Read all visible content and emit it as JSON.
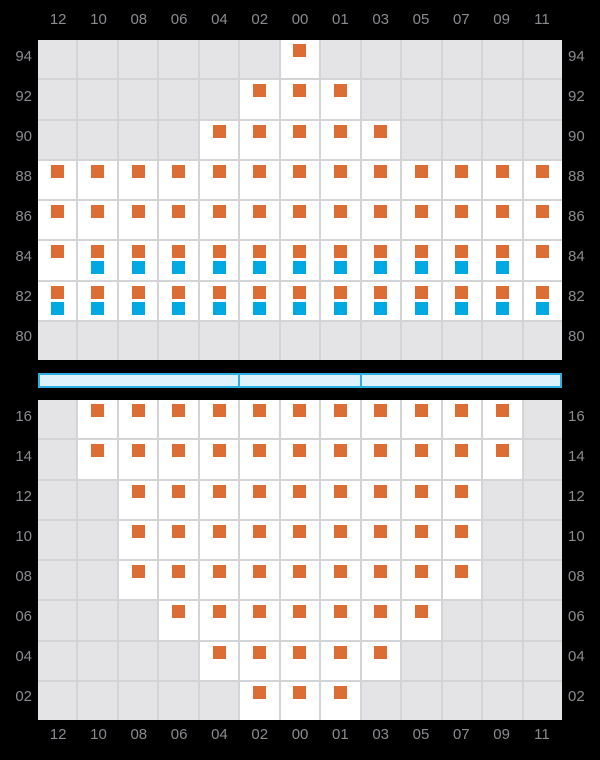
{
  "columns": [
    "12",
    "10",
    "08",
    "06",
    "04",
    "02",
    "00",
    "01",
    "03",
    "05",
    "07",
    "09",
    "11"
  ],
  "colors": {
    "background": "#000000",
    "label_text": "#8a8b90",
    "grid_line": "#d3d4d6",
    "cell_empty": "#e4e4e6",
    "cell_filled": "#ffffff",
    "orange_mark": "#dc6e35",
    "blue_mark": "#00a9e1",
    "bar_fill": "#def2fc",
    "bar_border": "#2faee3"
  },
  "chart_data": [
    {
      "type": "heatmap",
      "name": "upper-grid",
      "columns": [
        "12",
        "10",
        "08",
        "06",
        "04",
        "02",
        "00",
        "01",
        "03",
        "05",
        "07",
        "09",
        "11"
      ],
      "row_axis_side": "both",
      "grid": true,
      "rows": [
        {
          "label": "94",
          "orange": [
            "00"
          ],
          "blue": []
        },
        {
          "label": "92",
          "orange": [
            "02",
            "00",
            "01"
          ],
          "blue": []
        },
        {
          "label": "90",
          "orange": [
            "04",
            "02",
            "00",
            "01",
            "03"
          ],
          "blue": []
        },
        {
          "label": "88",
          "orange": [
            "12",
            "10",
            "08",
            "06",
            "04",
            "02",
            "00",
            "01",
            "03",
            "05",
            "07",
            "09",
            "11"
          ],
          "blue": []
        },
        {
          "label": "86",
          "orange": [
            "12",
            "10",
            "08",
            "06",
            "04",
            "02",
            "00",
            "01",
            "03",
            "05",
            "07",
            "09",
            "11"
          ],
          "blue": []
        },
        {
          "label": "84",
          "orange": [
            "12",
            "10",
            "08",
            "06",
            "04",
            "02",
            "00",
            "01",
            "03",
            "05",
            "07",
            "09",
            "11"
          ],
          "blue": [
            "10",
            "08",
            "06",
            "04",
            "02",
            "00",
            "01",
            "03",
            "05",
            "07",
            "09"
          ]
        },
        {
          "label": "82",
          "orange": [
            "12",
            "10",
            "08",
            "06",
            "04",
            "02",
            "00",
            "01",
            "03",
            "05",
            "07",
            "09",
            "11"
          ],
          "blue": [
            "12",
            "10",
            "08",
            "06",
            "04",
            "02",
            "00",
            "01",
            "03",
            "05",
            "07",
            "09",
            "11"
          ]
        },
        {
          "label": "80",
          "orange": [],
          "blue": []
        }
      ]
    },
    {
      "type": "heatmap",
      "name": "lower-grid",
      "columns": [
        "12",
        "10",
        "08",
        "06",
        "04",
        "02",
        "00",
        "01",
        "03",
        "05",
        "07",
        "09",
        "11"
      ],
      "row_axis_side": "both",
      "grid": true,
      "rows": [
        {
          "label": "16",
          "orange": [
            "10",
            "08",
            "06",
            "04",
            "02",
            "00",
            "01",
            "03",
            "05",
            "07",
            "09"
          ],
          "blue": []
        },
        {
          "label": "14",
          "orange": [
            "10",
            "08",
            "06",
            "04",
            "02",
            "00",
            "01",
            "03",
            "05",
            "07",
            "09"
          ],
          "blue": []
        },
        {
          "label": "12",
          "orange": [
            "08",
            "06",
            "04",
            "02",
            "00",
            "01",
            "03",
            "05",
            "07"
          ],
          "blue": []
        },
        {
          "label": "10",
          "orange": [
            "08",
            "06",
            "04",
            "02",
            "00",
            "01",
            "03",
            "05",
            "07"
          ],
          "blue": []
        },
        {
          "label": "08",
          "orange": [
            "08",
            "06",
            "04",
            "02",
            "00",
            "01",
            "03",
            "05",
            "07"
          ],
          "blue": []
        },
        {
          "label": "06",
          "orange": [
            "06",
            "04",
            "02",
            "00",
            "01",
            "03",
            "05"
          ],
          "blue": []
        },
        {
          "label": "04",
          "orange": [
            "04",
            "02",
            "00",
            "01",
            "03"
          ],
          "blue": []
        },
        {
          "label": "02",
          "orange": [
            "02",
            "00",
            "01"
          ],
          "blue": []
        }
      ]
    }
  ],
  "range_bar": {
    "segments": [
      {
        "from_column": "12",
        "to_column": "04",
        "units": 5
      },
      {
        "from_column": "02",
        "to_column": "01",
        "units": 3
      },
      {
        "from_column": "03",
        "to_column": "11",
        "units": 5
      }
    ]
  }
}
